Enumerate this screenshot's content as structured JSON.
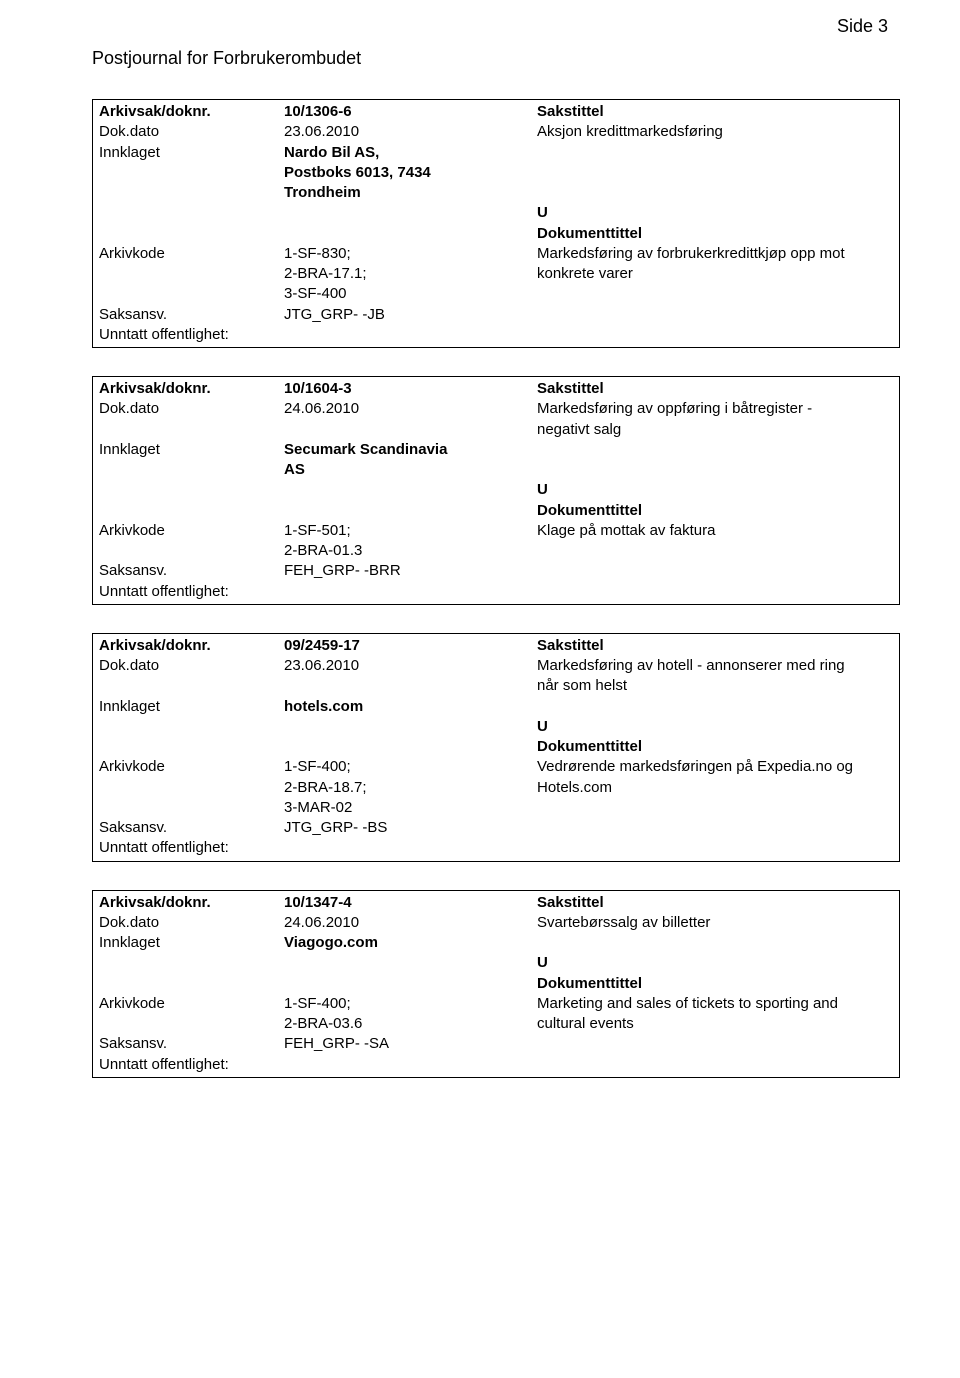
{
  "page_number": "Side 3",
  "journal_title": "Postjournal for Forbrukerombudet",
  "labels": {
    "arkivsak_doknr": "Arkivsak/doknr.",
    "dok_dato": "Dok.dato",
    "innklaget": "Innklaget",
    "arkivkode": "Arkivkode",
    "saksansv": "Saksansv.",
    "unntatt": "Unntatt offentlighet:",
    "sakstittel": "Sakstittel",
    "dokumenttittel": "Dokumenttittel"
  },
  "records": [
    {
      "arkivsak_doknr": "10/1306-6",
      "dok_dato": "23.06.2010",
      "sakstittel_desc": "Aksjon kredittmarkedsføring",
      "innklaget": "Nardo Bil AS,\nPostboks 6013, 7434\nTrondheim",
      "ui_letter": "U",
      "arkivkode": "1-SF-830;\n2-BRA-17.1;\n3-SF-400",
      "dokumenttittel_desc": "Markedsføring av forbrukerkredittkjøp opp mot\nkonkrete varer",
      "saksansv": "JTG_GRP- -JB"
    },
    {
      "arkivsak_doknr": "10/1604-3",
      "dok_dato": "24.06.2010",
      "sakstittel_desc": "Markedsføring av oppføring i båtregister -\nnegativt salg",
      "innklaget": "Secumark Scandinavia\nAS",
      "ui_letter": "U",
      "arkivkode": "1-SF-501;\n2-BRA-01.3",
      "dokumenttittel_desc": "Klage på mottak av faktura",
      "saksansv": "FEH_GRP- -BRR"
    },
    {
      "arkivsak_doknr": "09/2459-17",
      "dok_dato": "23.06.2010",
      "sakstittel_desc": "Markedsføring av hotell - annonserer med ring\nnår som helst",
      "innklaget": "hotels.com",
      "ui_letter": "U",
      "arkivkode": "1-SF-400;\n2-BRA-18.7;\n3-MAR-02",
      "dokumenttittel_desc": "Vedrørende markedsføringen på Expedia.no og\nHotels.com",
      "saksansv": "JTG_GRP- -BS"
    },
    {
      "arkivsak_doknr": "10/1347-4",
      "dok_dato": "24.06.2010",
      "sakstittel_desc": "Svartebørssalg av billetter",
      "innklaget": "Viagogo.com",
      "ui_letter": "U",
      "arkivkode": "1-SF-400;\n2-BRA-03.6",
      "dokumenttittel_desc": "Marketing and sales of tickets to sporting and\ncultural events",
      "saksansv": "FEH_GRP- -SA"
    }
  ]
}
